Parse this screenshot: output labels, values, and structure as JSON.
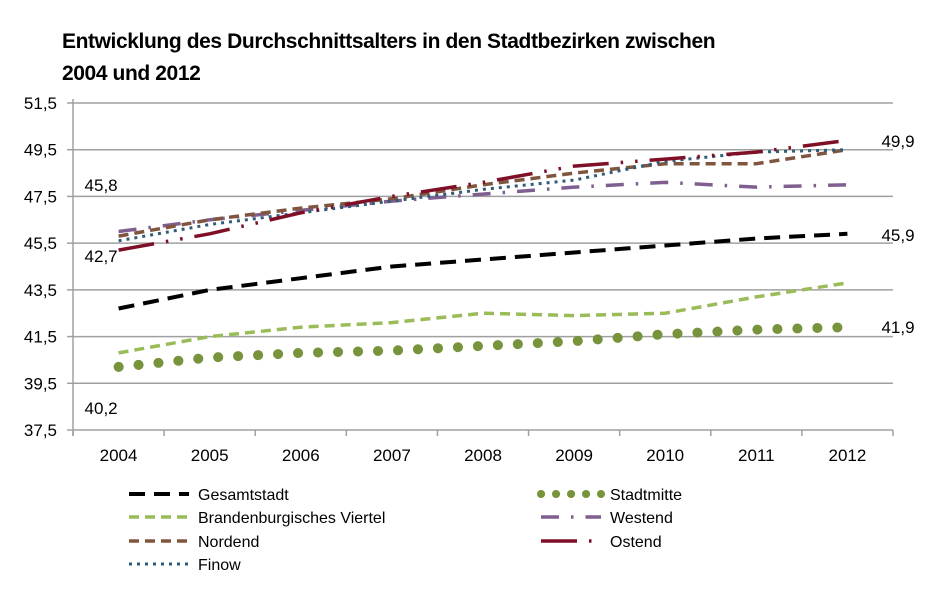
{
  "chart_data": {
    "type": "line",
    "title": "Entwicklung des Durchschnittsalters in den Stadtbezirken zwischen 2004 und 2012",
    "title_lines": [
      "Entwicklung des Durchschnittsalters in den Stadtbezirken zwischen",
      "2004 und 2012"
    ],
    "xlabel": "",
    "ylabel": "",
    "categories": [
      "2004",
      "2005",
      "2006",
      "2007",
      "2008",
      "2009",
      "2010",
      "2011",
      "2012"
    ],
    "ylim": [
      37.5,
      51.5
    ],
    "yticks": [
      "37,5",
      "39,5",
      "41,5",
      "43,5",
      "45,5",
      "47,5",
      "49,5",
      "51,5"
    ],
    "ytick_values": [
      37.5,
      39.5,
      41.5,
      43.5,
      45.5,
      47.5,
      49.5,
      51.5
    ],
    "grid": true,
    "legend_position": "bottom",
    "series": [
      {
        "name": "Gesamtstadt",
        "color": "#000000",
        "style": "long-dash",
        "values": [
          42.7,
          43.5,
          44.0,
          44.5,
          44.8,
          45.1,
          45.4,
          45.7,
          45.9
        ]
      },
      {
        "name": "Stadtmitte",
        "color": "#77933C",
        "style": "round-dot",
        "values": [
          40.2,
          40.6,
          40.8,
          40.9,
          41.1,
          41.3,
          41.6,
          41.8,
          41.9
        ]
      },
      {
        "name": "Brandenburgisches Viertel",
        "color": "#9BBB59",
        "style": "dash",
        "values": [
          40.8,
          41.5,
          41.9,
          42.1,
          42.5,
          42.4,
          42.5,
          43.2,
          43.8
        ]
      },
      {
        "name": "Westend",
        "color": "#7F5F8F",
        "style": "dash-dot",
        "values": [
          46.0,
          46.5,
          46.9,
          47.3,
          47.6,
          47.9,
          48.1,
          47.9,
          48.0
        ]
      },
      {
        "name": "Nordend",
        "color": "#7F5540",
        "style": "dash",
        "values": [
          45.8,
          46.5,
          47.0,
          47.4,
          48.0,
          48.5,
          48.9,
          48.9,
          49.5
        ]
      },
      {
        "name": "Ostend",
        "color": "#7F0F27",
        "style": "long-dash-dot-dot",
        "values": [
          45.2,
          45.9,
          46.8,
          47.5,
          48.1,
          48.8,
          49.1,
          49.4,
          49.9
        ]
      },
      {
        "name": "Finow",
        "color": "#2F5C7A",
        "style": "square-dot",
        "values": [
          45.6,
          46.3,
          46.8,
          47.3,
          47.8,
          48.2,
          49.0,
          49.4,
          49.5
        ]
      }
    ],
    "annotations": [
      {
        "text": "45,8",
        "anchor": "2004-top"
      },
      {
        "text": "42,7",
        "anchor": "2004-gesamtstadt"
      },
      {
        "text": "40,2",
        "anchor": "2004-stadtmitte"
      },
      {
        "text": "49,9",
        "anchor": "2012-top"
      },
      {
        "text": "45,9",
        "anchor": "2012-gesamtstadt"
      },
      {
        "text": "41,9",
        "anchor": "2012-stadtmitte"
      }
    ],
    "legend": [
      {
        "label": "Gesamtstadt",
        "series": 0
      },
      {
        "label": "Stadtmitte",
        "series": 1
      },
      {
        "label": "Brandenburgisches Viertel",
        "series": 2
      },
      {
        "label": "Westend",
        "series": 3
      },
      {
        "label": "Nordend",
        "series": 4
      },
      {
        "label": "Ostend",
        "series": 5
      },
      {
        "label": "Finow",
        "series": 6
      }
    ]
  }
}
